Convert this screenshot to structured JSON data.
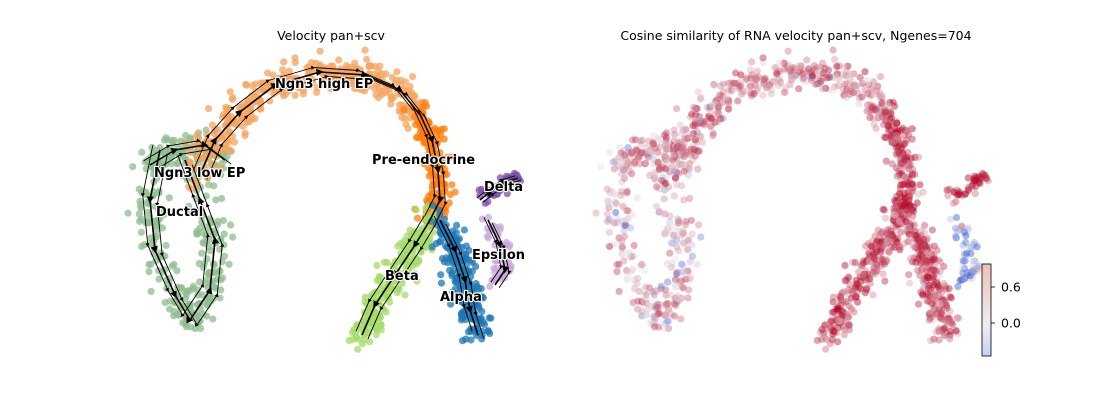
{
  "chart_data": [
    {
      "type": "scatter",
      "title": "Velocity pan+scv",
      "xlabel": "",
      "ylabel": "",
      "axes_visible": false,
      "streamlines": true,
      "clusters": [
        {
          "name": "Ductal",
          "color": "#8fbc8f"
        },
        {
          "name": "Ngn3 low EP",
          "color": "#8fbc8f"
        },
        {
          "name": "Ngn3 high EP",
          "color": "#f4a460"
        },
        {
          "name": "Pre-endocrine",
          "color": "#ff7f0e"
        },
        {
          "name": "Beta",
          "color": "#a6d96a"
        },
        {
          "name": "Alpha",
          "color": "#1f77b4"
        },
        {
          "name": "Delta",
          "color": "#7b4fa8"
        },
        {
          "name": "Epsilon",
          "color": "#c8a8d8"
        }
      ]
    },
    {
      "type": "scatter",
      "title": "Cosine similarity of RNA velocity pan+scv, Ngenes=704",
      "xlabel": "",
      "ylabel": "",
      "axes_visible": false,
      "colormap": "coolwarm",
      "colorbar": {
        "ticks": [
          0.6,
          0.0
        ],
        "tick_labels": [
          "0.6",
          "0.0"
        ],
        "range": [
          -0.5,
          1.0
        ]
      }
    }
  ],
  "colors": {
    "low": "#3b5bd6",
    "mid": "#e8e8ea",
    "high": "#b40426"
  }
}
